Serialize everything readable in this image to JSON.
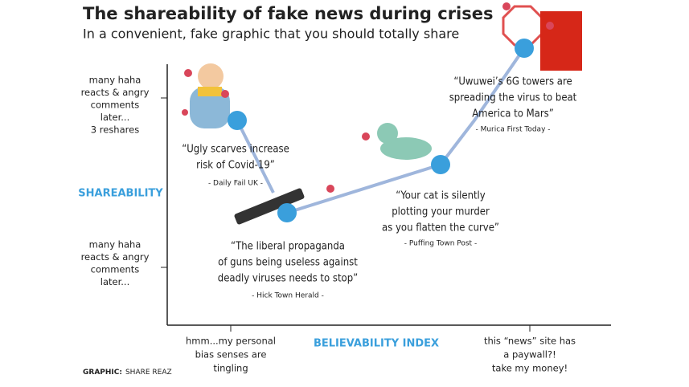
{
  "header": {
    "title": "The shareability of fake news during crises",
    "subtitle": "In a convenient, fake graphic that you should totally share"
  },
  "y_axis": {
    "title": "SHAREABILITY",
    "ticks": [
      {
        "lines": [
          "many haha",
          "reacts & angry",
          "comments",
          "later...",
          "3 reshares"
        ]
      },
      {
        "lines": [
          "many haha",
          "reacts & angry",
          "comments",
          "later..."
        ]
      }
    ]
  },
  "x_axis": {
    "title": "BELIEVABILITY INDEX",
    "ticks": [
      {
        "lines": [
          "hmm...my personal",
          "bias senses are",
          "tingling"
        ]
      },
      {
        "lines": [
          "this “news” site has",
          "a paywall?!",
          "take my money!"
        ]
      }
    ]
  },
  "points": [
    {
      "quote": [
        "“Ugly scarves increase",
        "risk of Covid-19”"
      ],
      "source": "- Daily Fail UK -"
    },
    {
      "quote": [
        "“The liberal propaganda",
        "of guns being useless against",
        "deadly viruses needs to stop”"
      ],
      "source": "- Hick Town Herald -"
    },
    {
      "quote": [
        "“Your cat is silently",
        "plotting your murder",
        "as you flatten the curve”"
      ],
      "source": "- Puffing Town Post -"
    },
    {
      "quote": [
        "“Uwuwei’s 6G towers are",
        "spreading the virus to beat",
        "America to Mars”"
      ],
      "source": "- Murica First Today -"
    }
  ],
  "credit": {
    "label": "GRAPHIC:",
    "name": "SHARE REAZ"
  }
}
